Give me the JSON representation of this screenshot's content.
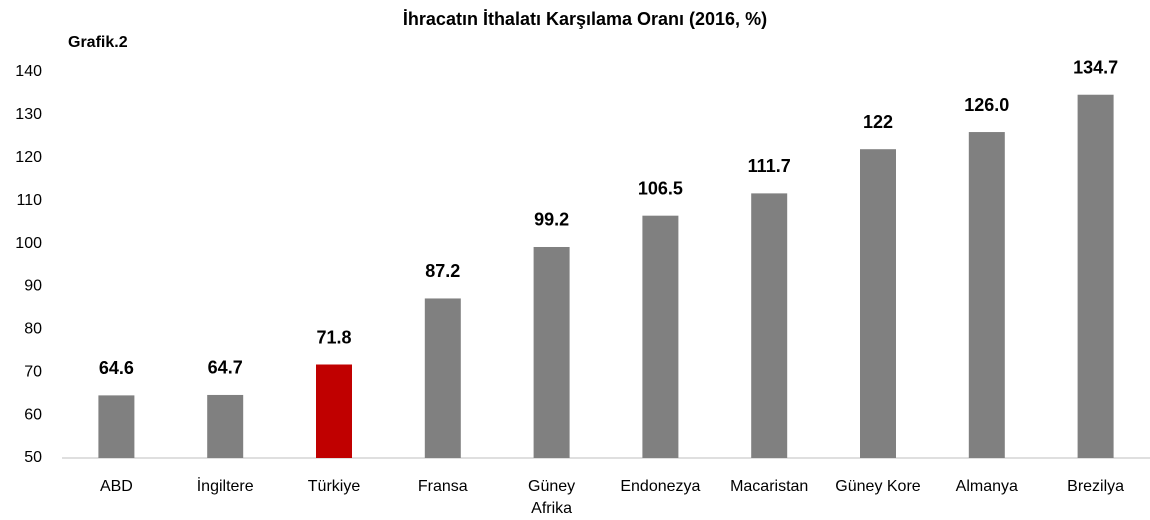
{
  "chart_data": {
    "type": "bar",
    "title": "İhracatın İthalatı Karşılama Oranı (2016, %)",
    "annotation": "Grafik.2",
    "categories": [
      "ABD",
      "İngiltere",
      "Türkiye",
      "Fransa",
      "Güney\nAfrika",
      "Endonezya",
      "Macaristan",
      "Güney Kore",
      "Almanya",
      "Brezilya"
    ],
    "values": [
      64.6,
      64.7,
      71.8,
      87.2,
      99.2,
      106.5,
      111.7,
      122,
      126.0,
      134.7
    ],
    "value_labels": [
      "64.6",
      "64.7",
      "71.8",
      "87.2",
      "99.2",
      "106.5",
      "111.7",
      "122",
      "126.0",
      "134.7"
    ],
    "colors": [
      "#808080",
      "#808080",
      "#c00000",
      "#808080",
      "#808080",
      "#808080",
      "#808080",
      "#808080",
      "#808080",
      "#808080"
    ],
    "ylim": [
      50,
      140
    ],
    "yticks": [
      50,
      60,
      70,
      80,
      90,
      100,
      110,
      120,
      130,
      140
    ],
    "grid": false
  }
}
